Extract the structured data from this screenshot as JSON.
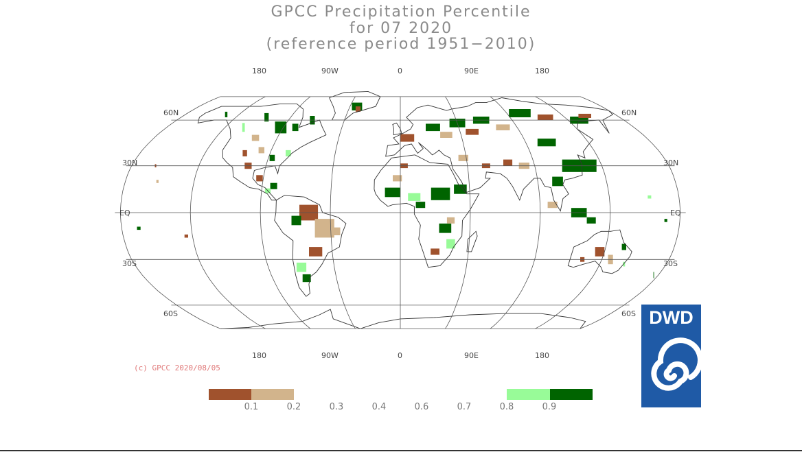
{
  "title": {
    "line1": "GPCC Precipitation Percentile",
    "line2": "for 07 2020",
    "line3": "(reference period 1951−2010)"
  },
  "axes": {
    "top_lon": [
      "180",
      "90W",
      "0",
      "90E",
      "180"
    ],
    "bottom_lon": [
      "180",
      "90W",
      "0",
      "90E",
      "180"
    ],
    "left_lat": [
      "60N",
      "30N",
      "EQ",
      "30S",
      "60S"
    ],
    "right_lat": [
      "60N",
      "30N",
      "EQ",
      "30S",
      "60S"
    ]
  },
  "copyright": "(c) GPCC 2020/08/05",
  "legend": {
    "colors": {
      "very_dry": "#a0522d",
      "dry": "#d2b48c",
      "wet": "#98fb98",
      "very_wet": "#006400"
    },
    "labels": [
      "0.1",
      "0.2",
      "0.3",
      "0.4",
      "0.6",
      "0.7",
      "0.8",
      "0.9"
    ]
  },
  "logo": {
    "text": "DWD",
    "color": "#1f5aa6"
  },
  "colors": {
    "title": "#8a8a8a",
    "grid": "#555555",
    "copyright": "#e07a7a"
  }
}
